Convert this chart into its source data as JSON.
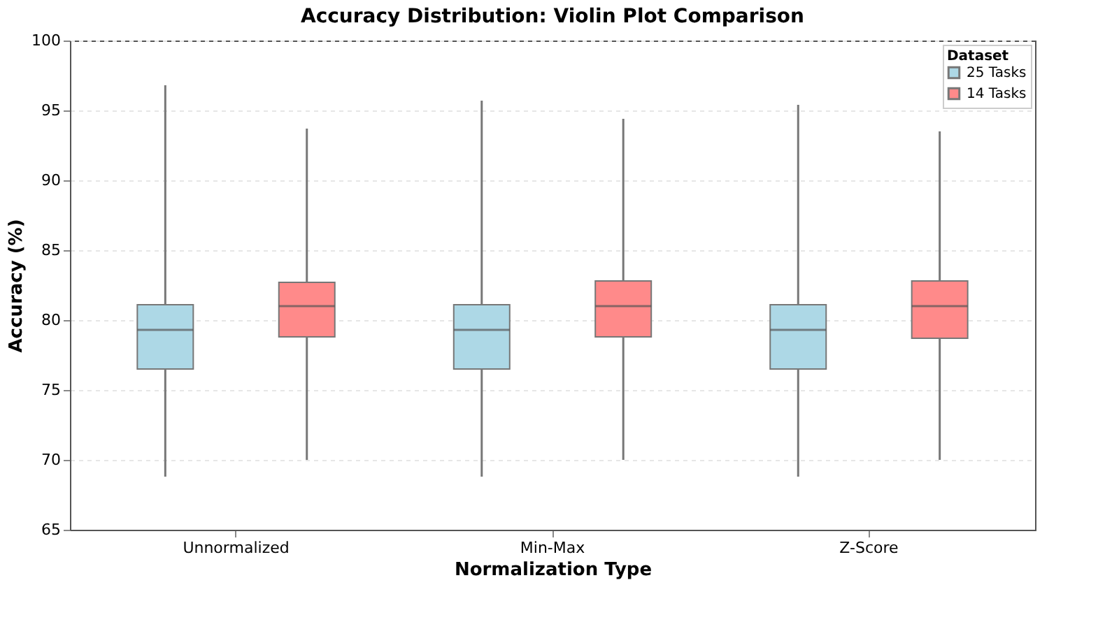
{
  "chart_data": {
    "type": "box",
    "title": "Accuracy Distribution: Violin Plot Comparison",
    "xlabel": "Normalization Type",
    "ylabel": "Accuracy (%)",
    "legend_title": "Dataset",
    "categories": [
      "Unnormalized",
      "Min-Max",
      "Z-Score"
    ],
    "series": [
      {
        "name": "25 Tasks",
        "color": "#add8e6",
        "boxes": [
          {
            "low": 68.8,
            "q1": 76.5,
            "median": 79.3,
            "q3": 81.1,
            "high": 96.8
          },
          {
            "low": 68.8,
            "q1": 76.5,
            "median": 79.3,
            "q3": 81.1,
            "high": 95.7
          },
          {
            "low": 68.8,
            "q1": 76.5,
            "median": 79.3,
            "q3": 81.1,
            "high": 95.4
          }
        ]
      },
      {
        "name": "14 Tasks",
        "color": "#ff8a8a",
        "boxes": [
          {
            "low": 70.0,
            "q1": 78.8,
            "median": 81.0,
            "q3": 82.7,
            "high": 93.7
          },
          {
            "low": 70.0,
            "q1": 78.8,
            "median": 81.0,
            "q3": 82.8,
            "high": 94.4
          },
          {
            "low": 70.0,
            "q1": 78.7,
            "median": 81.0,
            "q3": 82.8,
            "high": 93.5
          }
        ]
      }
    ],
    "ylim": [
      65,
      100
    ],
    "yticks": [
      65,
      70,
      75,
      80,
      85,
      90,
      95,
      100
    ],
    "grid": "y",
    "legend": "top right"
  }
}
